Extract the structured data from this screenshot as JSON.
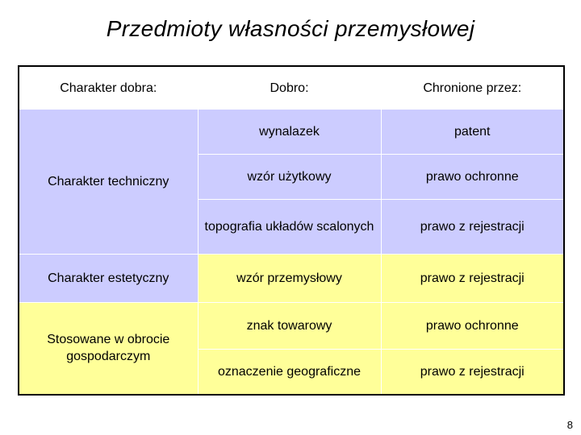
{
  "slide": {
    "title": "Przedmioty własności przemysłowej",
    "page_number": "8"
  },
  "table": {
    "headers": [
      "Charakter dobra:",
      "Dobro:",
      "Chronione przez:"
    ],
    "groups": [
      {
        "category": "Charakter techniczny",
        "rows": [
          {
            "dobro": "wynalazek",
            "chronione": "patent"
          },
          {
            "dobro": "wzór użytkowy",
            "chronione": "prawo ochronne"
          },
          {
            "dobro": "topografia układów scalonych",
            "chronione": "prawo z rejestracji"
          }
        ]
      },
      {
        "category": "Charakter estetyczny",
        "rows": [
          {
            "dobro": "wzór przemysłowy",
            "chronione": "prawo z rejestracji"
          }
        ]
      },
      {
        "category": "Stosowane w obrocie gospodarczym",
        "rows": [
          {
            "dobro": "znak towarowy",
            "chronione": "prawo ochronne"
          },
          {
            "dobro": "oznaczenie geograficzne",
            "chronione": "prawo z rejestracji"
          }
        ]
      }
    ]
  },
  "colors": {
    "technical_bg": "#ccccff",
    "aesthetic_bg": "#ccccff",
    "economic_bg": "#ffff99"
  }
}
